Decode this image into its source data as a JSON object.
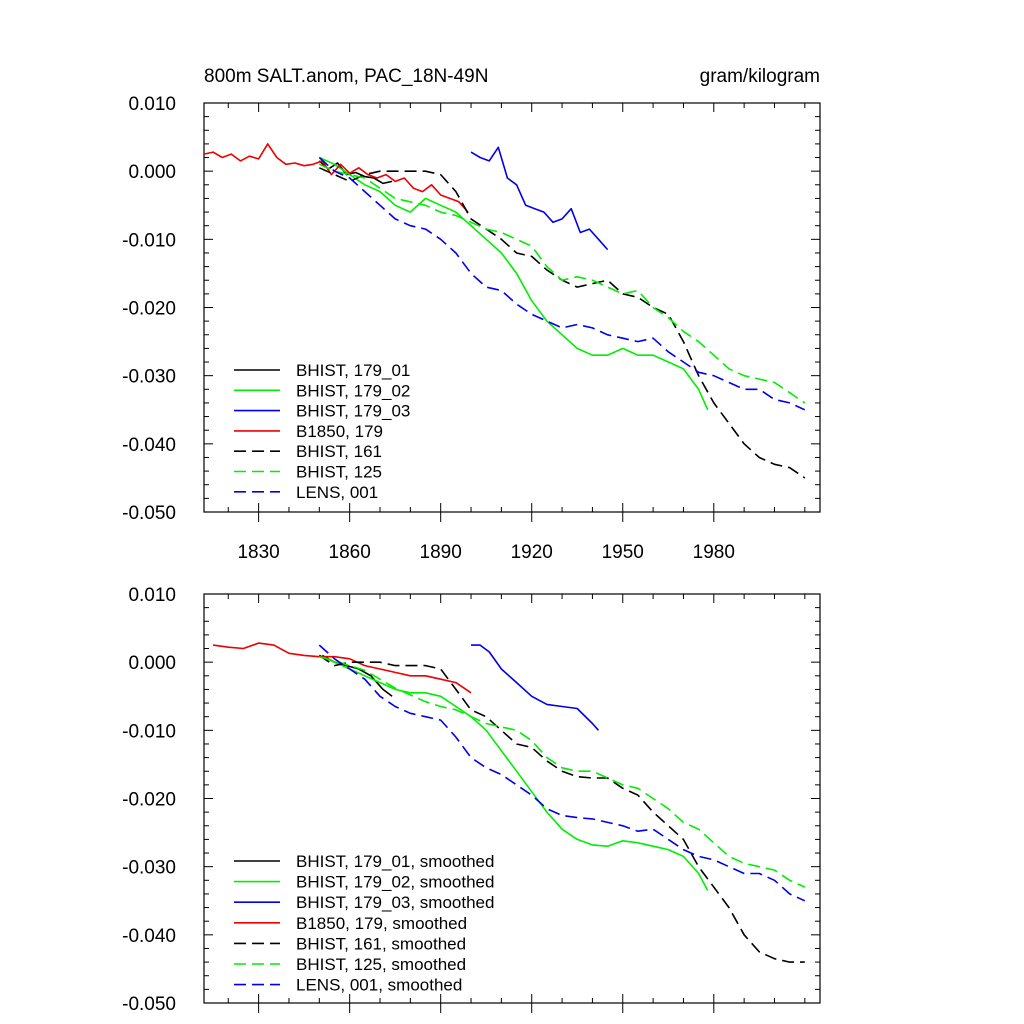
{
  "chart_data": [
    {
      "type": "line",
      "title": "800m SALT.anom, PAC_18N-49N",
      "units": "gram/kilogram",
      "xlim": [
        1812,
        2015
      ],
      "ylim": [
        -0.05,
        0.01
      ],
      "yticks": [
        0.01,
        0.0,
        -0.01,
        -0.02,
        -0.03,
        -0.04,
        -0.05
      ],
      "ytick_labels": [
        "0.010",
        "0.000",
        "-0.010",
        "-0.020",
        "-0.030",
        "-0.040",
        "-0.050"
      ],
      "xticks": [
        1830,
        1860,
        1890,
        1920,
        1950,
        1980
      ],
      "xtick_labels": [
        "1830",
        "1860",
        "1890",
        "1920",
        "1950",
        "1980"
      ],
      "legend_position": "bottom-left",
      "series": [
        {
          "name": "BHIST, 179_01",
          "color": "#000000",
          "dash": "solid",
          "x": [
            1850,
            1853,
            1856,
            1859,
            1862,
            1865,
            1868,
            1871,
            1874
          ],
          "y": [
            0.0015,
            0.0003,
            0.0012,
            -0.0005,
            -0.0002,
            -0.0008,
            -0.001,
            -0.0018,
            -0.0015
          ]
        },
        {
          "name": "BHIST, 179_02",
          "color": "#00ee00",
          "dash": "solid",
          "x": [
            1850,
            1855,
            1860,
            1865,
            1870,
            1875,
            1880,
            1885,
            1890,
            1895,
            1900,
            1905,
            1910,
            1915,
            1920,
            1925,
            1930,
            1935,
            1940,
            1945,
            1950,
            1955,
            1960,
            1965,
            1970,
            1975,
            1978
          ],
          "y": [
            0.002,
            0.001,
            -0.0005,
            -0.002,
            -0.003,
            -0.005,
            -0.006,
            -0.004,
            -0.005,
            -0.006,
            -0.008,
            -0.01,
            -0.012,
            -0.015,
            -0.019,
            -0.022,
            -0.024,
            -0.026,
            -0.027,
            -0.027,
            -0.026,
            -0.027,
            -0.027,
            -0.028,
            -0.029,
            -0.032,
            -0.035
          ]
        },
        {
          "name": "BHIST, 179_03",
          "color": "#0000ee",
          "dash": "solid",
          "x": [
            1900,
            1903,
            1906,
            1909,
            1912,
            1915,
            1918,
            1921,
            1924,
            1927,
            1930,
            1933,
            1936,
            1939,
            1942,
            1945
          ],
          "y": [
            0.0028,
            0.002,
            0.0015,
            0.0035,
            -0.001,
            -0.002,
            -0.005,
            -0.0055,
            -0.006,
            -0.0075,
            -0.007,
            -0.0055,
            -0.009,
            -0.0085,
            -0.01,
            -0.0115
          ]
        },
        {
          "name": "B1850, 179",
          "color": "#ee0000",
          "dash": "solid",
          "x": [
            1812,
            1815,
            1818,
            1821,
            1824,
            1827,
            1830,
            1833,
            1836,
            1839,
            1842,
            1845,
            1848,
            1851,
            1854,
            1857,
            1860,
            1863,
            1866,
            1869,
            1872,
            1875,
            1878,
            1881,
            1884,
            1887,
            1890,
            1893,
            1896,
            1899
          ],
          "y": [
            0.0025,
            0.0028,
            0.002,
            0.0025,
            0.0015,
            0.0022,
            0.0018,
            0.004,
            0.002,
            0.001,
            0.0012,
            0.0008,
            0.001,
            0.0015,
            -0.0005,
            0.001,
            -0.0003,
            0.0005,
            -0.0005,
            -0.001,
            -0.0005,
            -0.0015,
            -0.001,
            -0.0025,
            -0.003,
            -0.002,
            -0.0035,
            -0.004,
            -0.0045,
            -0.006
          ]
        },
        {
          "name": "BHIST, 161",
          "color": "#000000",
          "dash": "dashed",
          "x": [
            1850,
            1855,
            1860,
            1865,
            1870,
            1875,
            1880,
            1885,
            1890,
            1895,
            1900,
            1905,
            1910,
            1915,
            1920,
            1925,
            1930,
            1935,
            1940,
            1945,
            1950,
            1955,
            1960,
            1965,
            1970,
            1975,
            1980,
            1985,
            1990,
            1995,
            2000,
            2005,
            2010
          ],
          "y": [
            0.0005,
            -0.0005,
            -0.0015,
            -0.0005,
            0.0,
            0.0,
            0.0,
            0.0,
            -0.0005,
            -0.003,
            -0.007,
            -0.0085,
            -0.01,
            -0.012,
            -0.0125,
            -0.0145,
            -0.016,
            -0.017,
            -0.0165,
            -0.016,
            -0.018,
            -0.0185,
            -0.02,
            -0.021,
            -0.025,
            -0.03,
            -0.034,
            -0.037,
            -0.04,
            -0.042,
            -0.043,
            -0.0435,
            -0.045
          ]
        },
        {
          "name": "BHIST, 125",
          "color": "#00ee00",
          "dash": "dashed",
          "x": [
            1850,
            1855,
            1860,
            1865,
            1870,
            1875,
            1880,
            1885,
            1890,
            1895,
            1900,
            1905,
            1910,
            1915,
            1920,
            1925,
            1930,
            1935,
            1940,
            1945,
            1950,
            1955,
            1960,
            1965,
            1970,
            1975,
            1980,
            1985,
            1990,
            1995,
            2000,
            2005,
            2010
          ],
          "y": [
            0.001,
            0.0,
            -0.0005,
            -0.001,
            -0.0025,
            -0.004,
            -0.0045,
            -0.005,
            -0.006,
            -0.0065,
            -0.0075,
            -0.0085,
            -0.009,
            -0.01,
            -0.011,
            -0.014,
            -0.016,
            -0.0155,
            -0.016,
            -0.017,
            -0.018,
            -0.0175,
            -0.02,
            -0.0215,
            -0.0235,
            -0.025,
            -0.027,
            -0.029,
            -0.03,
            -0.0305,
            -0.031,
            -0.0325,
            -0.034
          ]
        },
        {
          "name": "LENS, 001",
          "color": "#0000ee",
          "dash": "dashed",
          "x": [
            1850,
            1855,
            1860,
            1865,
            1870,
            1875,
            1880,
            1885,
            1890,
            1895,
            1900,
            1905,
            1910,
            1915,
            1920,
            1925,
            1930,
            1935,
            1940,
            1945,
            1950,
            1955,
            1960,
            1965,
            1970,
            1975,
            1980,
            1985,
            1990,
            1995,
            2000,
            2005,
            2010
          ],
          "y": [
            0.002,
            0.0,
            -0.001,
            -0.003,
            -0.005,
            -0.007,
            -0.008,
            -0.0085,
            -0.01,
            -0.012,
            -0.015,
            -0.017,
            -0.0175,
            -0.0195,
            -0.021,
            -0.022,
            -0.023,
            -0.0225,
            -0.023,
            -0.024,
            -0.0245,
            -0.025,
            -0.0245,
            -0.0265,
            -0.028,
            -0.0295,
            -0.03,
            -0.031,
            -0.032,
            -0.032,
            -0.0335,
            -0.034,
            -0.035
          ]
        }
      ]
    },
    {
      "type": "line",
      "title": "",
      "units": "",
      "xlim": [
        1812,
        2015
      ],
      "ylim": [
        -0.05,
        0.01
      ],
      "yticks": [
        0.01,
        0.0,
        -0.01,
        -0.02,
        -0.03,
        -0.04,
        -0.05
      ],
      "ytick_labels": [
        "0.010",
        "0.000",
        "-0.010",
        "-0.020",
        "-0.030",
        "-0.040",
        "-0.050"
      ],
      "xticks": [
        1830,
        1860,
        1890,
        1920,
        1950,
        1980
      ],
      "xtick_labels": [],
      "legend_position": "bottom-left",
      "series": [
        {
          "name": "BHIST, 179_01, smoothed",
          "color": "#000000",
          "dash": "solid",
          "x": [
            1851,
            1855,
            1859,
            1863,
            1867,
            1871,
            1874
          ],
          "y": [
            0.001,
            0.0,
            -0.0005,
            -0.001,
            -0.002,
            -0.004,
            -0.005
          ]
        },
        {
          "name": "BHIST, 179_02, smoothed",
          "color": "#00ee00",
          "dash": "solid",
          "x": [
            1850,
            1855,
            1860,
            1865,
            1870,
            1875,
            1880,
            1885,
            1890,
            1895,
            1900,
            1905,
            1910,
            1915,
            1920,
            1925,
            1930,
            1935,
            1940,
            1945,
            1950,
            1955,
            1960,
            1965,
            1970,
            1975,
            1978
          ],
          "y": [
            0.001,
            0.0,
            -0.001,
            -0.002,
            -0.003,
            -0.004,
            -0.0045,
            -0.0045,
            -0.005,
            -0.0065,
            -0.008,
            -0.01,
            -0.013,
            -0.016,
            -0.019,
            -0.022,
            -0.0245,
            -0.026,
            -0.0268,
            -0.027,
            -0.0262,
            -0.0265,
            -0.027,
            -0.0275,
            -0.0285,
            -0.031,
            -0.0335
          ]
        },
        {
          "name": "BHIST, 179_03, smoothed",
          "color": "#0000ee",
          "dash": "solid",
          "x": [
            1900,
            1903,
            1906,
            1910,
            1915,
            1920,
            1925,
            1930,
            1935,
            1940,
            1942
          ],
          "y": [
            0.0025,
            0.0025,
            0.0015,
            -0.001,
            -0.003,
            -0.005,
            -0.0062,
            -0.0065,
            -0.0068,
            -0.009,
            -0.01
          ]
        },
        {
          "name": "B1850, 179, smoothed",
          "color": "#ee0000",
          "dash": "solid",
          "x": [
            1815,
            1820,
            1825,
            1830,
            1835,
            1840,
            1845,
            1850,
            1855,
            1860,
            1865,
            1870,
            1875,
            1880,
            1885,
            1890,
            1895,
            1900
          ],
          "y": [
            0.0025,
            0.0022,
            0.002,
            0.0028,
            0.0025,
            0.0013,
            0.001,
            0.0008,
            0.0008,
            0.0005,
            -0.0005,
            -0.001,
            -0.0015,
            -0.002,
            -0.002,
            -0.0025,
            -0.003,
            -0.0045
          ]
        },
        {
          "name": "BHIST, 161, smoothed",
          "color": "#000000",
          "dash": "dashed",
          "x": [
            1850,
            1855,
            1860,
            1865,
            1870,
            1875,
            1880,
            1885,
            1890,
            1895,
            1900,
            1905,
            1910,
            1915,
            1920,
            1925,
            1930,
            1935,
            1940,
            1945,
            1950,
            1955,
            1960,
            1965,
            1970,
            1975,
            1980,
            1985,
            1990,
            1995,
            2000,
            2005,
            2010
          ],
          "y": [
            0.001,
            -0.0005,
            0.0,
            0.0,
            0.0,
            -0.0005,
            -0.0005,
            -0.0005,
            -0.001,
            -0.004,
            -0.007,
            -0.008,
            -0.01,
            -0.012,
            -0.0125,
            -0.0145,
            -0.016,
            -0.0168,
            -0.017,
            -0.017,
            -0.0185,
            -0.0195,
            -0.022,
            -0.024,
            -0.026,
            -0.03,
            -0.033,
            -0.036,
            -0.04,
            -0.0425,
            -0.0435,
            -0.044,
            -0.044
          ]
        },
        {
          "name": "BHIST, 125, smoothed",
          "color": "#00ee00",
          "dash": "dashed",
          "x": [
            1850,
            1855,
            1860,
            1865,
            1870,
            1875,
            1880,
            1885,
            1890,
            1895,
            1900,
            1905,
            1910,
            1915,
            1920,
            1925,
            1930,
            1935,
            1940,
            1945,
            1950,
            1955,
            1960,
            1965,
            1970,
            1975,
            1980,
            1985,
            1990,
            1995,
            2000,
            2005,
            2010
          ],
          "y": [
            0.0008,
            0.0002,
            -0.0005,
            -0.0012,
            -0.0025,
            -0.0038,
            -0.0048,
            -0.0058,
            -0.0065,
            -0.007,
            -0.008,
            -0.009,
            -0.0095,
            -0.01,
            -0.0115,
            -0.014,
            -0.0155,
            -0.016,
            -0.016,
            -0.017,
            -0.018,
            -0.0185,
            -0.02,
            -0.0215,
            -0.0235,
            -0.0245,
            -0.0265,
            -0.0285,
            -0.0295,
            -0.03,
            -0.0305,
            -0.032,
            -0.033
          ]
        },
        {
          "name": "LENS, 001, smoothed",
          "color": "#0000ee",
          "dash": "dashed",
          "x": [
            1850,
            1855,
            1860,
            1865,
            1870,
            1875,
            1880,
            1885,
            1890,
            1895,
            1900,
            1905,
            1910,
            1915,
            1920,
            1925,
            1930,
            1935,
            1940,
            1945,
            1950,
            1955,
            1960,
            1965,
            1970,
            1975,
            1980,
            1985,
            1990,
            1995,
            2000,
            2005,
            2010
          ],
          "y": [
            0.0025,
            0.0005,
            -0.001,
            -0.0025,
            -0.005,
            -0.0065,
            -0.0075,
            -0.008,
            -0.0085,
            -0.011,
            -0.014,
            -0.0155,
            -0.0165,
            -0.018,
            -0.0195,
            -0.0215,
            -0.0225,
            -0.0228,
            -0.023,
            -0.0235,
            -0.024,
            -0.0248,
            -0.0245,
            -0.026,
            -0.0275,
            -0.0285,
            -0.029,
            -0.03,
            -0.031,
            -0.031,
            -0.032,
            -0.034,
            -0.035
          ]
        }
      ]
    }
  ]
}
